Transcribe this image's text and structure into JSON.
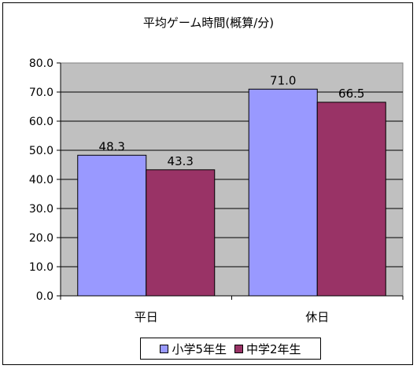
{
  "chart_data": {
    "type": "bar",
    "title": "平均ゲーム時間(概算/分)",
    "categories": [
      "平日",
      "休日"
    ],
    "series": [
      {
        "name": "小学5年生",
        "values": [
          48.3,
          71.0
        ],
        "labels": [
          "48.3",
          "71.0"
        ],
        "color": "#9999ff"
      },
      {
        "name": "中学2年生",
        "values": [
          43.3,
          66.5
        ],
        "labels": [
          "43.3",
          "66.5"
        ],
        "color": "#993366"
      }
    ],
    "ylim": [
      0,
      80
    ],
    "yticks": [
      "0.0",
      "10.0",
      "20.0",
      "30.0",
      "40.0",
      "50.0",
      "60.0",
      "70.0",
      "80.0"
    ],
    "plot_background": "#c0c0c0",
    "grid": true,
    "legend": "bottom"
  }
}
